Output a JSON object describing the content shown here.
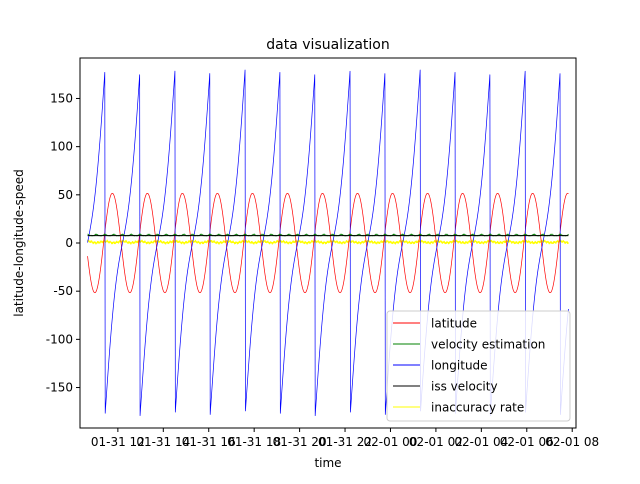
{
  "chart_data": {
    "type": "line",
    "title": "data visualization",
    "xlabel": "time",
    "ylabel": "latitude-longitude-speed",
    "x_axis": {
      "start": "2024-01-31T10:40",
      "end": "2024-02-01T07:50",
      "tick_labels": [
        "01-31 12",
        "01-31 14",
        "01-31 16",
        "01-31 18",
        "01-31 20",
        "01-31 22",
        "02-01 00",
        "02-01 02",
        "02-01 04",
        "02-01 06",
        "02-01 08"
      ]
    },
    "y_axis": {
      "ylim": [
        -192,
        192
      ],
      "ticks": [
        -150,
        -100,
        -50,
        0,
        50,
        100,
        150
      ]
    },
    "grid": false,
    "legend_position": "lower right",
    "orbit": {
      "period_minutes": 92.5,
      "inclination_deg": 51.6,
      "first_dateline_crossing": "2024-01-31T11:26"
    },
    "series": [
      {
        "name": "latitude",
        "color": "#ff0000",
        "range": [
          -51.6,
          51.6
        ],
        "description": "sinusoid"
      },
      {
        "name": "velocity estimation",
        "color": "#008000",
        "mean": 7.66,
        "range": [
          6.5,
          10.5
        ]
      },
      {
        "name": "longitude",
        "color": "#0000ff",
        "range": [
          -180,
          180
        ],
        "description": "sawtooth"
      },
      {
        "name": "iss velocity",
        "color": "#000000",
        "mean": 7.66
      },
      {
        "name": "inaccuracy rate",
        "color": "#ffff00",
        "range": [
          -1.5,
          3.5
        ]
      }
    ]
  }
}
